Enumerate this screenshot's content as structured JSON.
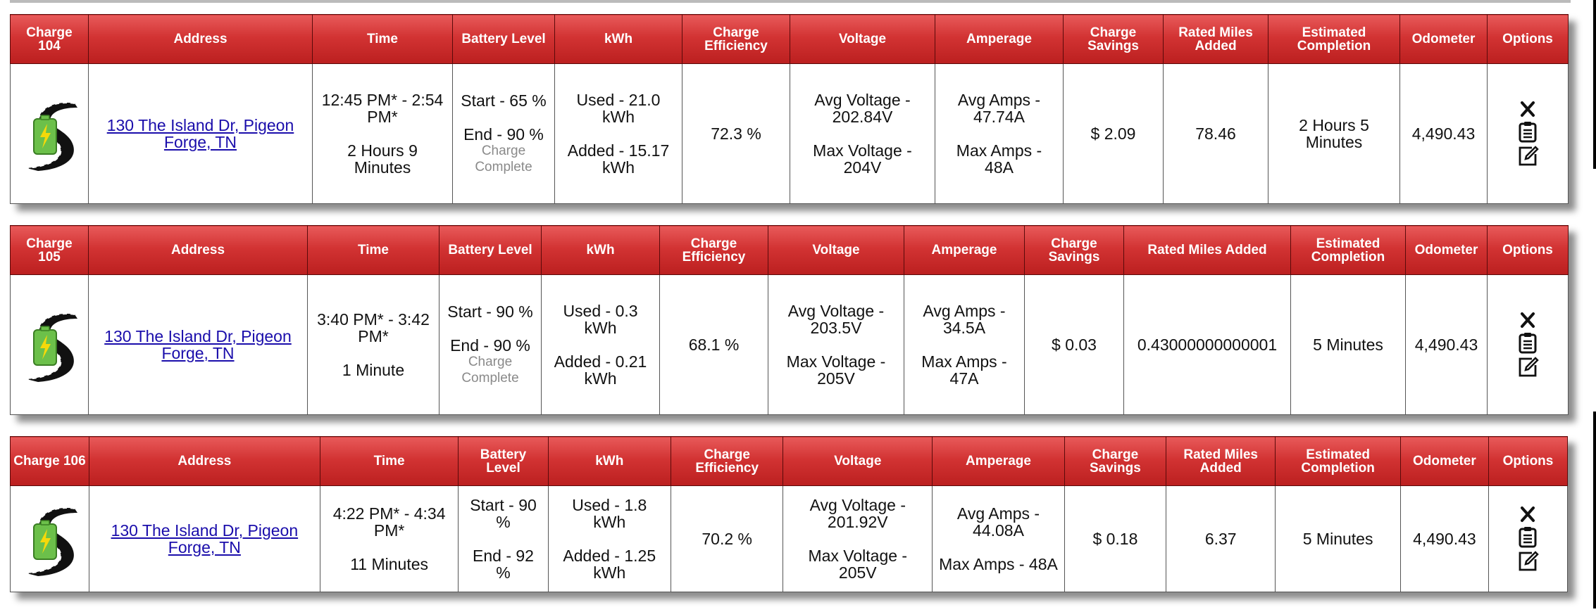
{
  "columns": {
    "address": "Address",
    "time": "Time",
    "battery_level": "Battery Level",
    "kwh": "kWh",
    "charge_efficiency": "Charge Efficiency",
    "voltage": "Voltage",
    "amperage": "Amperage",
    "charge_savings": "Charge Savings",
    "rated_miles_added": "Rated Miles Added",
    "estimated_completion": "Estimated Completion",
    "odometer": "Odometer",
    "options": "Options"
  },
  "icons": {
    "logo": "road-battery-logo-icon",
    "delete": "x-icon",
    "details": "clipboard-icon",
    "edit": "edit-icon"
  },
  "colors": {
    "header_red": "#d23333",
    "link_blue": "#1a0dab",
    "battery_green": "#6cc04a",
    "bolt_yellow": "#f5d90a"
  },
  "charges": [
    {
      "label": "Charge 104",
      "address": "130 The Island Dr, Pigeon Forge, TN",
      "time_range": "12:45 PM* - 2:54 PM*",
      "duration": "2 Hours 9 Minutes",
      "battery_start": "Start - 65 %",
      "battery_end": "End - 90 %",
      "battery_status": "Charge Complete",
      "kwh_used": "Used - 21.0 kWh",
      "kwh_added": "Added - 15.17 kWh",
      "efficiency": "72.3 %",
      "avg_voltage": "Avg Voltage - 202.84V",
      "max_voltage": "Max Voltage - 204V",
      "avg_amps": "Avg Amps - 47.74A",
      "max_amps": "Max Amps - 48A",
      "savings": "$ 2.09",
      "rated_miles": "78.46",
      "estimated_completion": "2 Hours 5 Minutes",
      "odometer": "4,490.43"
    },
    {
      "label": "Charge 105",
      "address": "130 The Island Dr, Pigeon Forge, TN",
      "time_range": "3:40 PM* - 3:42 PM*",
      "duration": "1 Minute",
      "battery_start": "Start - 90 %",
      "battery_end": "End - 90 %",
      "battery_status": "Charge Complete",
      "kwh_used": "Used - 0.3 kWh",
      "kwh_added": "Added - 0.21 kWh",
      "efficiency": "68.1 %",
      "avg_voltage": "Avg Voltage - 203.5V",
      "max_voltage": "Max Voltage - 205V",
      "avg_amps": "Avg Amps - 34.5A",
      "max_amps": "Max Amps - 47A",
      "savings": "$ 0.03",
      "rated_miles": "0.43000000000001",
      "estimated_completion": "5 Minutes",
      "odometer": "4,490.43"
    },
    {
      "label": "Charge 106",
      "address": "130 The Island Dr, Pigeon Forge, TN",
      "time_range": "4:22 PM* - 4:34 PM*",
      "duration": "11 Minutes",
      "battery_start": "Start - 90 %",
      "battery_end": "End - 92 %",
      "battery_status": "",
      "kwh_used": "Used - 1.8 kWh",
      "kwh_added": "Added - 1.25 kWh",
      "efficiency": "70.2 %",
      "avg_voltage": "Avg Voltage - 201.92V",
      "max_voltage": "Max Voltage - 205V",
      "avg_amps": "Avg Amps - 44.08A",
      "max_amps": "Max Amps - 48A",
      "savings": "$ 0.18",
      "rated_miles": "6.37",
      "estimated_completion": "5 Minutes",
      "odometer": "4,490.43"
    }
  ]
}
